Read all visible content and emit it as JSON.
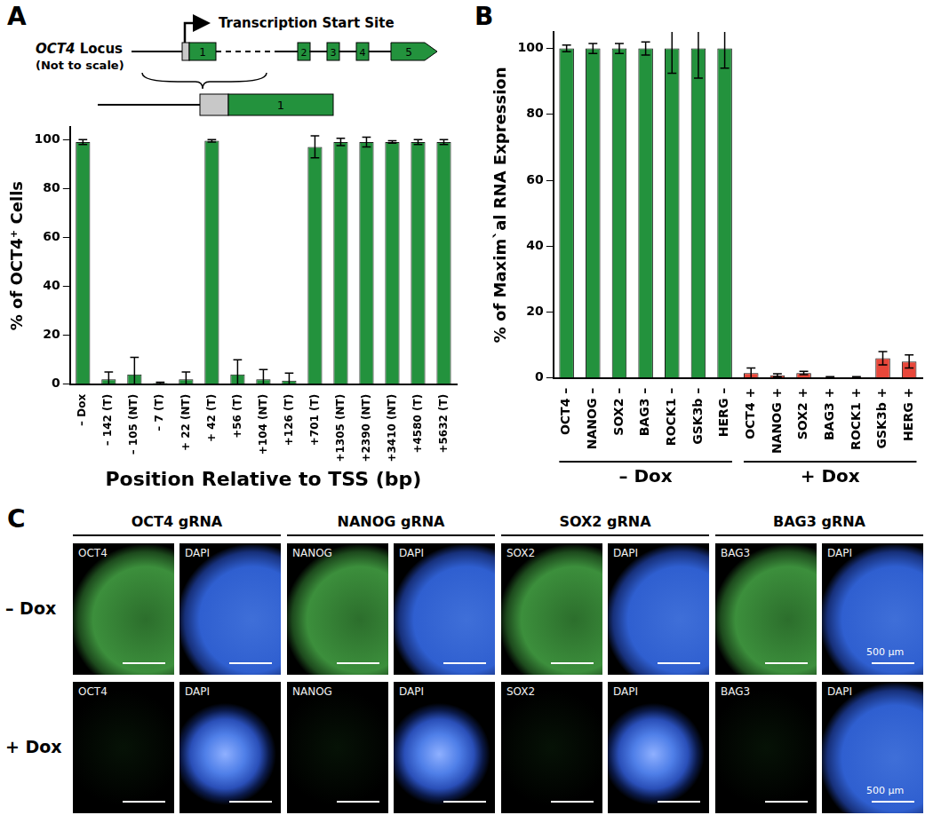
{
  "panel_labels": [
    "A",
    "B",
    "C"
  ],
  "locus_diagram": {
    "locus_label": "OCT4",
    "locus_suffix": "Locus",
    "locus_note": "(Not to scale)",
    "tss_label": "Transcription Start Site",
    "exons": [
      "1",
      "2",
      "3",
      "4",
      "5"
    ]
  },
  "chart_data": [
    {
      "type": "bar",
      "x_label": "Position Relative to TSS (bp)",
      "y_label": "% of OCT4⁺ Cells",
      "categories": [
        "– Dox",
        "– 142 (T)",
        "– 105 (NT)",
        "– 7 (T)",
        "+ 22 (NT)",
        "+ 42 (T)",
        "+56 (T)",
        "+104 (NT)",
        "+126 (T)",
        "+701 (T)",
        "+1305 (NT)",
        "+2390 (NT)",
        "+3410 (NT)",
        "+4580 (T)",
        "+5632 (T)"
      ],
      "values": [
        99,
        2,
        4,
        0.5,
        2,
        99.5,
        4,
        2,
        1.5,
        97,
        99,
        99,
        99,
        99,
        99
      ],
      "errors": [
        1,
        3,
        7,
        0.3,
        3,
        0.5,
        6,
        4,
        3,
        4.5,
        1.5,
        2,
        0.5,
        1,
        1
      ],
      "color": "#23923d",
      "ylim": [
        0,
        105
      ],
      "yticks": [
        0,
        20,
        40,
        60,
        80,
        100
      ],
      "grid": false
    },
    {
      "type": "bar",
      "y_label": "% of Maxim`al RNA Expression",
      "categories": [
        "OCT4 –",
        "NANOG –",
        "SOX2 –",
        "BAG3 –",
        "ROCK1 –",
        "GSK3b –",
        "HERG –",
        "OCT4 +",
        "NANOG +",
        "SOX2 +",
        "BAG3 +",
        "ROCK1 +",
        "GSK3b +",
        "HERG +"
      ],
      "values": [
        100,
        100,
        100,
        100,
        100,
        100,
        100,
        1.5,
        0.8,
        1.5,
        0.2,
        0.2,
        6,
        5
      ],
      "errors": [
        1,
        1.5,
        1.5,
        2,
        7.5,
        9,
        6,
        1.5,
        0.5,
        0.5,
        0.2,
        0.2,
        2,
        2
      ],
      "colors": [
        "#23923d",
        "#23923d",
        "#23923d",
        "#23923d",
        "#23923d",
        "#23923d",
        "#23923d",
        "#e8473a",
        "#e8473a",
        "#e8473a",
        "#e8473a",
        "#e8473a",
        "#e8473a",
        "#e8473a"
      ],
      "groups": [
        {
          "label": "– Dox",
          "count": 7
        },
        {
          "label": "+ Dox",
          "count": 7
        }
      ],
      "ylim": [
        0,
        105
      ],
      "yticks": [
        0,
        20,
        40,
        60,
        80,
        100
      ],
      "grid": false
    }
  ],
  "image_panel": {
    "rows": [
      "– Dox",
      "+ Dox"
    ],
    "columns": [
      {
        "title": "OCT4 gRNA",
        "channels": [
          "OCT4",
          "DAPI"
        ]
      },
      {
        "title": "NANOG gRNA",
        "channels": [
          "NANOG",
          "DAPI"
        ]
      },
      {
        "title": "SOX2 gRNA",
        "channels": [
          "SOX2",
          "DAPI"
        ]
      },
      {
        "title": "BAG3 gRNA",
        "channels": [
          "BAG3",
          "DAPI"
        ],
        "scale_bar_label": "500 µm"
      }
    ]
  }
}
